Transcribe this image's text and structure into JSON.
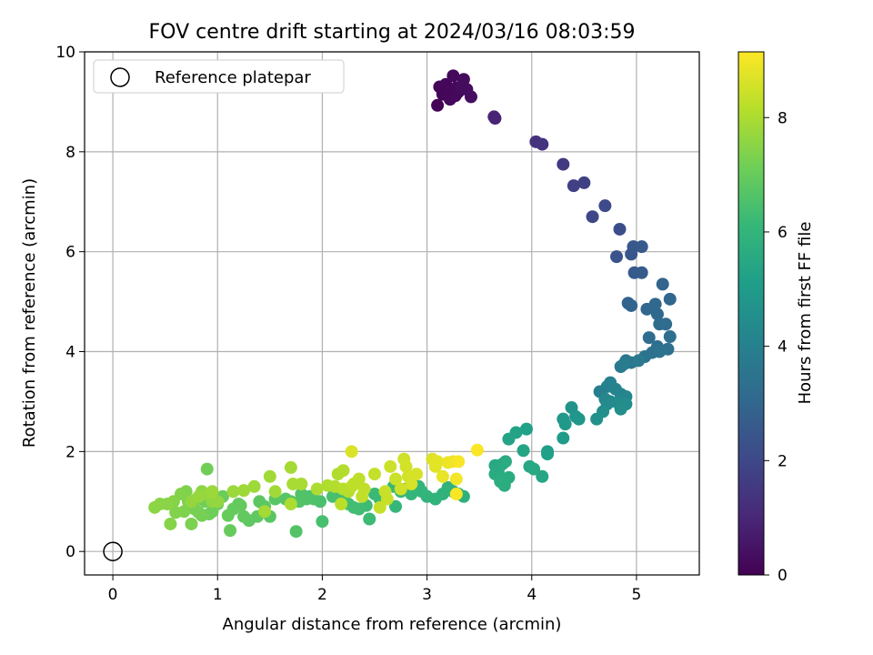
{
  "chart_data": {
    "type": "scatter",
    "title": "FOV centre drift starting at 2024/03/16 08:03:59",
    "xlabel": "Angular distance from reference (arcmin)",
    "ylabel": "Rotation from reference (arcmin)",
    "xlim": [
      -0.27,
      5.6
    ],
    "ylim": [
      -0.47,
      10.0
    ],
    "xticks": [
      "0",
      "1",
      "2",
      "3",
      "4",
      "5"
    ],
    "yticks": [
      "0",
      "2",
      "4",
      "6",
      "8",
      "10"
    ],
    "grid": true,
    "legend": {
      "position": "top-left",
      "entries": [
        "Reference platepar"
      ]
    },
    "reference_point": {
      "x": 0,
      "y": 0,
      "label": "Reference platepar"
    },
    "colorbar": {
      "label": "Hours from first FF file",
      "range": [
        0,
        9.15
      ],
      "ticks": [
        "0",
        "2",
        "4",
        "6",
        "8"
      ],
      "colormap": "viridis"
    },
    "points": [
      [
        3.1,
        8.93,
        0.05
      ],
      [
        3.15,
        9.2,
        0.1
      ],
      [
        3.12,
        9.3,
        0.12
      ],
      [
        3.18,
        9.35,
        0.15
      ],
      [
        3.22,
        9.05,
        0.18
      ],
      [
        3.25,
        9.52,
        0.2
      ],
      [
        3.28,
        9.28,
        0.22
      ],
      [
        3.3,
        9.2,
        0.25
      ],
      [
        3.35,
        9.45,
        0.28
      ],
      [
        3.38,
        9.25,
        0.3
      ],
      [
        3.42,
        9.1,
        0.33
      ],
      [
        3.15,
        9.15,
        0.12
      ],
      [
        3.2,
        9.25,
        0.16
      ],
      [
        3.27,
        9.12,
        0.2
      ],
      [
        3.32,
        9.3,
        0.25
      ],
      [
        3.65,
        8.67,
        0.9
      ],
      [
        3.64,
        8.7,
        0.92
      ],
      [
        4.04,
        8.2,
        1.3
      ],
      [
        4.1,
        8.15,
        1.35
      ],
      [
        4.3,
        7.75,
        1.6
      ],
      [
        4.4,
        7.32,
        1.75
      ],
      [
        4.5,
        7.38,
        1.8
      ],
      [
        4.58,
        6.7,
        2.0
      ],
      [
        4.7,
        6.92,
        2.05
      ],
      [
        4.84,
        6.45,
        2.2
      ],
      [
        4.81,
        5.9,
        2.35
      ],
      [
        4.95,
        5.95,
        2.45
      ],
      [
        4.97,
        6.1,
        2.5
      ],
      [
        5.05,
        6.1,
        2.55
      ],
      [
        4.98,
        5.58,
        2.6
      ],
      [
        5.05,
        5.58,
        2.65
      ],
      [
        4.92,
        4.97,
        2.9
      ],
      [
        4.95,
        4.92,
        2.95
      ],
      [
        5.1,
        4.85,
        3.0
      ],
      [
        5.18,
        4.95,
        3.05
      ],
      [
        5.2,
        4.75,
        3.1
      ],
      [
        5.25,
        5.35,
        2.9
      ],
      [
        5.32,
        5.05,
        3.0
      ],
      [
        5.22,
        4.55,
        3.15
      ],
      [
        5.28,
        4.55,
        3.2
      ],
      [
        5.12,
        4.28,
        3.25
      ],
      [
        5.2,
        4.1,
        3.3
      ],
      [
        5.3,
        4.05,
        3.35
      ],
      [
        5.32,
        4.3,
        3.3
      ],
      [
        5.15,
        3.98,
        3.4
      ],
      [
        5.22,
        4.0,
        3.45
      ],
      [
        5.08,
        3.9,
        3.5
      ],
      [
        4.9,
        3.82,
        3.6
      ],
      [
        4.95,
        3.78,
        3.65
      ],
      [
        5.02,
        3.82,
        3.7
      ],
      [
        4.85,
        3.7,
        3.7
      ],
      [
        4.88,
        3.75,
        3.8
      ],
      [
        4.65,
        3.2,
        3.9
      ],
      [
        4.72,
        3.3,
        4.0
      ],
      [
        4.75,
        3.38,
        4.05
      ],
      [
        4.8,
        3.25,
        4.1
      ],
      [
        4.85,
        3.15,
        4.15
      ],
      [
        4.9,
        3.1,
        4.2
      ],
      [
        4.7,
        3.05,
        4.25
      ],
      [
        4.75,
        3.0,
        4.3
      ],
      [
        4.72,
        2.95,
        4.35
      ],
      [
        4.82,
        2.98,
        4.4
      ],
      [
        4.9,
        2.95,
        4.45
      ],
      [
        4.85,
        2.85,
        4.5
      ],
      [
        4.68,
        2.8,
        4.5
      ],
      [
        4.62,
        2.65,
        4.6
      ],
      [
        4.38,
        2.88,
        4.7
      ],
      [
        4.42,
        2.7,
        4.75
      ],
      [
        4.45,
        2.65,
        4.8
      ],
      [
        4.3,
        2.65,
        4.85
      ],
      [
        4.32,
        2.55,
        4.9
      ],
      [
        4.3,
        2.27,
        5.0
      ],
      [
        4.15,
        2.0,
        5.1
      ],
      [
        4.15,
        1.95,
        5.15
      ],
      [
        3.95,
        2.45,
        5.2
      ],
      [
        3.85,
        2.38,
        5.25
      ],
      [
        3.78,
        2.25,
        5.3
      ],
      [
        3.92,
        2.02,
        5.35
      ],
      [
        4.1,
        1.5,
        5.4
      ],
      [
        3.98,
        1.7,
        5.45
      ],
      [
        4.02,
        1.65,
        5.5
      ],
      [
        3.72,
        1.75,
        5.55
      ],
      [
        3.75,
        1.8,
        5.6
      ],
      [
        3.68,
        1.6,
        5.6
      ],
      [
        3.65,
        1.55,
        5.65
      ],
      [
        3.78,
        1.48,
        5.65
      ],
      [
        3.7,
        1.4,
        5.7
      ],
      [
        3.74,
        1.32,
        5.7
      ],
      [
        3.65,
        1.72,
        5.5
      ],
      [
        3.35,
        1.1,
        5.8
      ],
      [
        3.3,
        1.15,
        5.85
      ],
      [
        3.25,
        1.2,
        5.85
      ],
      [
        3.2,
        1.28,
        5.9
      ],
      [
        3.15,
        1.15,
        5.9
      ],
      [
        3.08,
        1.05,
        5.95
      ],
      [
        3.0,
        1.1,
        5.95
      ],
      [
        2.95,
        1.2,
        6.0
      ],
      [
        2.92,
        1.3,
        6.0
      ],
      [
        2.85,
        1.15,
        6.05
      ],
      [
        2.8,
        1.25,
        6.05
      ],
      [
        2.75,
        1.2,
        6.1
      ],
      [
        2.7,
        0.9,
        6.1
      ],
      [
        2.68,
        1.3,
        6.15
      ],
      [
        2.55,
        1.05,
        6.2
      ],
      [
        2.5,
        1.15,
        6.2
      ],
      [
        2.45,
        0.65,
        6.25
      ],
      [
        2.42,
        0.92,
        6.25
      ],
      [
        2.35,
        0.85,
        6.3
      ],
      [
        2.3,
        0.88,
        6.35
      ],
      [
        2.25,
        0.95,
        6.35
      ],
      [
        2.2,
        1.0,
        6.4
      ],
      [
        2.18,
        1.05,
        6.4
      ],
      [
        2.1,
        1.1,
        6.45
      ],
      [
        2.0,
        0.6,
        6.45
      ],
      [
        1.98,
        1.0,
        6.5
      ],
      [
        1.92,
        1.05,
        6.55
      ],
      [
        1.88,
        1.1,
        6.55
      ],
      [
        1.85,
        1.05,
        6.6
      ],
      [
        1.8,
        1.15,
        6.6
      ],
      [
        1.75,
        0.4,
        6.65
      ],
      [
        1.78,
        1.0,
        6.65
      ],
      [
        1.7,
        1.0,
        6.7
      ],
      [
        1.65,
        1.05,
        6.7
      ],
      [
        1.55,
        1.05,
        6.75
      ],
      [
        1.5,
        0.7,
        6.75
      ],
      [
        1.45,
        0.9,
        6.8
      ],
      [
        1.4,
        1.0,
        6.8
      ],
      [
        1.38,
        0.7,
        6.85
      ],
      [
        1.3,
        0.62,
        6.85
      ],
      [
        1.25,
        0.7,
        6.9
      ],
      [
        1.22,
        0.92,
        6.9
      ],
      [
        1.2,
        0.95,
        6.95
      ],
      [
        1.15,
        0.85,
        6.95
      ],
      [
        1.12,
        0.42,
        7.0
      ],
      [
        1.1,
        0.72,
        7.0
      ],
      [
        1.05,
        1.1,
        7.05
      ],
      [
        1.0,
        0.95,
        7.05
      ],
      [
        0.95,
        0.8,
        7.1
      ],
      [
        0.92,
        0.75,
        7.1
      ],
      [
        0.9,
        1.65,
        7.15
      ],
      [
        0.88,
        1.0,
        7.15
      ],
      [
        0.85,
        0.72,
        7.2
      ],
      [
        0.82,
        0.78,
        7.2
      ],
      [
        0.8,
        1.05,
        7.25
      ],
      [
        0.78,
        0.85,
        7.25
      ],
      [
        0.75,
        0.55,
        7.3
      ],
      [
        0.72,
        1.0,
        7.3
      ],
      [
        0.7,
        1.2,
        7.35
      ],
      [
        0.68,
        0.8,
        7.35
      ],
      [
        0.65,
        1.15,
        7.4
      ],
      [
        0.6,
        0.78,
        7.4
      ],
      [
        0.58,
        1.0,
        7.45
      ],
      [
        0.55,
        0.55,
        7.45
      ],
      [
        0.52,
        0.95,
        7.5
      ],
      [
        0.45,
        0.95,
        7.5
      ],
      [
        0.4,
        0.88,
        7.55
      ],
      [
        0.85,
        1.2,
        7.55
      ],
      [
        0.9,
        1.15,
        7.6
      ],
      [
        0.95,
        1.0,
        7.6
      ],
      [
        1.0,
        1.0,
        7.65
      ],
      [
        0.75,
        1.0,
        7.65
      ],
      [
        0.82,
        1.1,
        7.7
      ],
      [
        0.92,
        1.15,
        7.7
      ],
      [
        0.95,
        1.2,
        7.75
      ],
      [
        1.15,
        1.2,
        7.75
      ],
      [
        1.25,
        1.22,
        7.8
      ],
      [
        1.35,
        1.3,
        7.8
      ],
      [
        1.5,
        1.5,
        7.85
      ],
      [
        1.55,
        1.2,
        7.85
      ],
      [
        1.45,
        0.8,
        7.9
      ],
      [
        1.7,
        1.68,
        7.9
      ],
      [
        1.72,
        1.35,
        7.95
      ],
      [
        1.8,
        1.35,
        7.95
      ],
      [
        1.7,
        0.95,
        8.0
      ],
      [
        1.95,
        1.25,
        8.0
      ],
      [
        2.05,
        1.32,
        8.05
      ],
      [
        2.15,
        1.55,
        8.05
      ],
      [
        2.2,
        1.62,
        8.1
      ],
      [
        2.12,
        1.3,
        8.1
      ],
      [
        2.25,
        1.2,
        8.15
      ],
      [
        2.2,
        1.25,
        8.15
      ],
      [
        2.18,
        0.95,
        8.2
      ],
      [
        2.28,
        1.3,
        8.2
      ],
      [
        2.3,
        1.35,
        8.25
      ],
      [
        2.35,
        1.45,
        8.25
      ],
      [
        2.4,
        1.25,
        8.3
      ],
      [
        2.38,
        1.1,
        8.3
      ],
      [
        2.5,
        1.55,
        8.35
      ],
      [
        2.55,
        0.88,
        8.35
      ],
      [
        2.6,
        1.2,
        8.4
      ],
      [
        2.62,
        1.05,
        8.4
      ],
      [
        2.65,
        1.7,
        8.45
      ],
      [
        2.7,
        1.45,
        8.45
      ],
      [
        2.75,
        1.25,
        8.5
      ],
      [
        2.78,
        1.85,
        8.5
      ],
      [
        2.8,
        1.7,
        8.55
      ],
      [
        2.82,
        1.5,
        8.55
      ],
      [
        2.85,
        1.35,
        8.6
      ],
      [
        2.9,
        1.55,
        8.6
      ],
      [
        2.28,
        2.0,
        8.65
      ],
      [
        3.05,
        1.85,
        8.7
      ],
      [
        3.08,
        1.7,
        8.75
      ],
      [
        3.1,
        1.8,
        8.8
      ],
      [
        3.15,
        1.5,
        8.85
      ],
      [
        3.2,
        1.78,
        8.9
      ],
      [
        3.25,
        1.8,
        8.95
      ],
      [
        3.28,
        1.45,
        9.0
      ],
      [
        3.3,
        1.8,
        9.05
      ],
      [
        3.28,
        1.15,
        9.1
      ],
      [
        3.48,
        2.03,
        9.1
      ]
    ]
  }
}
